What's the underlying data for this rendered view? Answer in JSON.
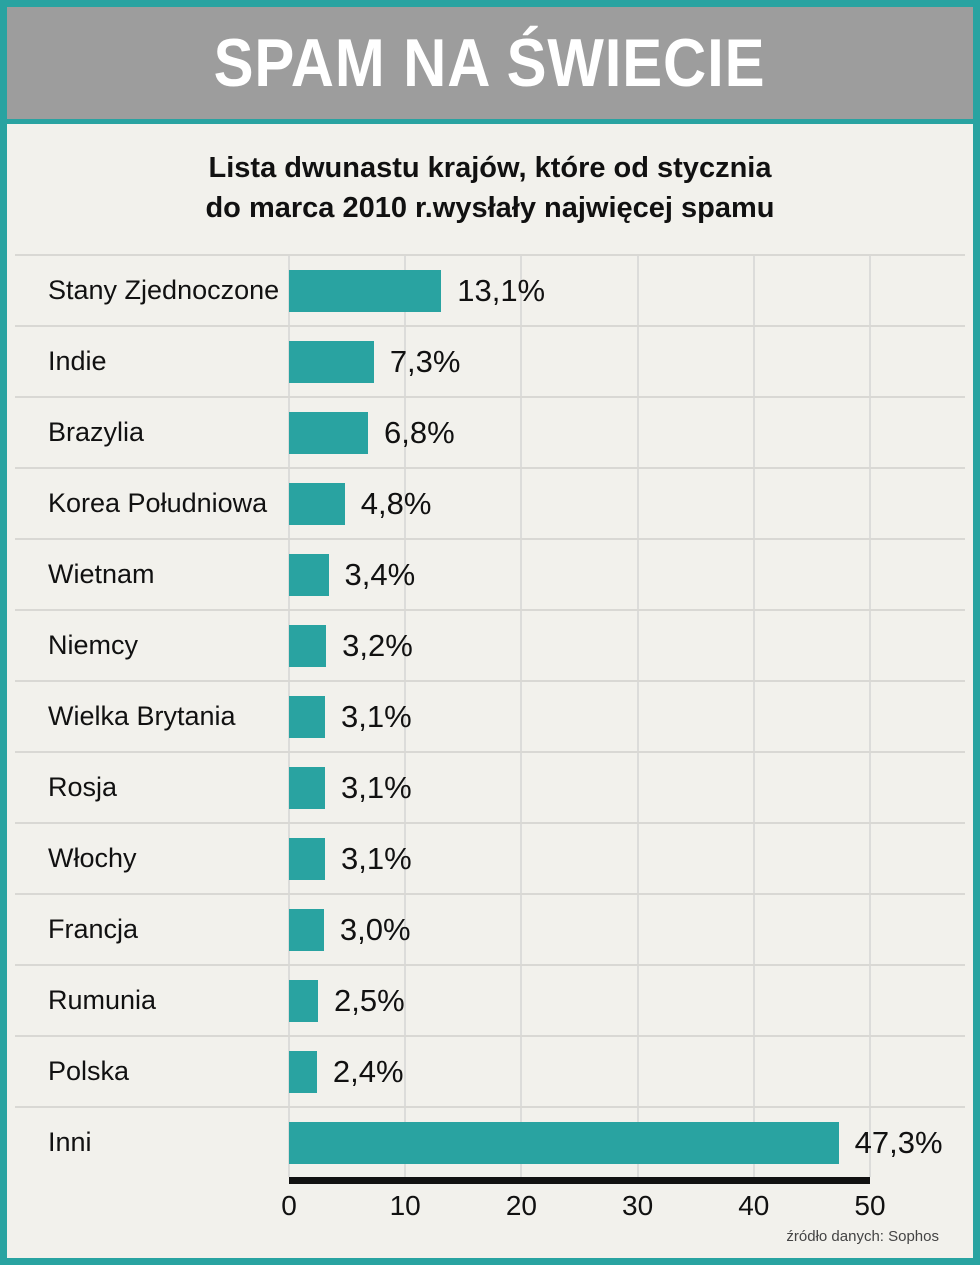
{
  "header": {
    "title": "SPAM NA ŚWIECIE"
  },
  "subtitle": {
    "line1": "Lista dwunastu krajów, które od stycznia",
    "line2": "do marca 2010 r.wysłały najwięcej spamu"
  },
  "source": "źródło danych: Sophos",
  "colors": {
    "teal": "#29a3a1",
    "header_gray": "#9d9d9d",
    "background": "#f2f1ec",
    "gridline": "#dcdcda",
    "axis": "#111111"
  },
  "chart_data": {
    "type": "bar",
    "orientation": "horizontal",
    "title": "SPAM NA ŚWIECIE",
    "subtitle": "Lista dwunastu krajów, które od stycznia do marca 2010 r.wysłały najwięcej spamu",
    "categories": [
      "Stany Zjednoczone",
      "Indie",
      "Brazylia",
      "Korea Południowa",
      "Wietnam",
      "Niemcy",
      "Wielka Brytania",
      "Rosja",
      "Włochy",
      "Francja",
      "Rumunia",
      "Polska",
      "Inni"
    ],
    "values": [
      13.1,
      7.3,
      6.8,
      4.8,
      3.4,
      3.2,
      3.1,
      3.1,
      3.1,
      3.0,
      2.5,
      2.4,
      47.3
    ],
    "value_labels": [
      "13,1%",
      "7,3%",
      "6,8%",
      "4,8%",
      "3,4%",
      "3,2%",
      "3,1%",
      "3,1%",
      "3,1%",
      "3,0%",
      "2,5%",
      "2,4%",
      "47,3%"
    ],
    "xlim": [
      0,
      50
    ],
    "x_ticks": [
      0,
      10,
      20,
      30,
      40,
      50
    ],
    "grid": true,
    "legend": "none",
    "bar_color": "#29a3a1",
    "source": "źródło danych: Sophos"
  }
}
